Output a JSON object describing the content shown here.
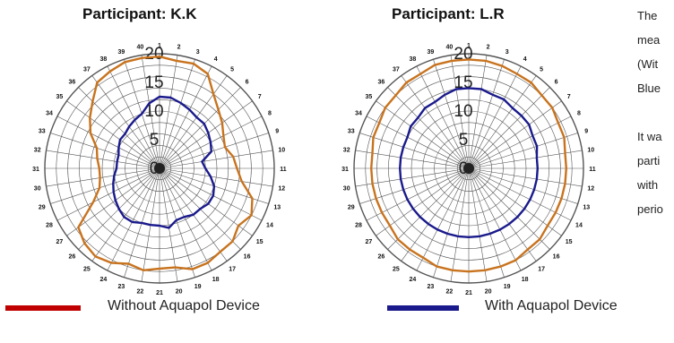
{
  "description_text": {
    "lines": [
      "The",
      "mea",
      "(Wit",
      "Blue",
      "",
      "It wa",
      "parti",
      "with",
      "perio"
    ]
  },
  "legend": {
    "red_label": "Without Aquapol Device",
    "blue_label": "With Aquapol Device",
    "red_color": "#c00000",
    "blue_color": "#1a1a8c"
  },
  "chart_data": [
    {
      "type": "radar",
      "title": "Participant: K.K",
      "categories": [
        "1",
        "2",
        "3",
        "4",
        "5",
        "6",
        "7",
        "8",
        "9",
        "10",
        "11",
        "12",
        "13",
        "14",
        "15",
        "16",
        "17",
        "18",
        "19",
        "20",
        "21",
        "22",
        "23",
        "24",
        "25",
        "26",
        "27",
        "28",
        "29",
        "30",
        "31",
        "32",
        "33",
        "34",
        "35",
        "36",
        "37",
        "38",
        "39",
        "40"
      ],
      "rlim": [
        0,
        20
      ],
      "radial_ticks": [
        "0",
        "5",
        "10",
        "15",
        "20"
      ],
      "plot_color": "#c8731e",
      "series": [
        {
          "name": "Without Aquapol Device",
          "values": [
            19.5,
            19,
            19.2,
            18.5,
            16,
            14.5,
            13.5,
            12.5,
            12,
            13,
            13.5,
            14.5,
            17,
            18,
            17,
            18,
            18,
            18.5,
            18.5,
            17.5,
            17.5,
            18,
            17.5,
            18.5,
            19,
            18.5,
            17.5,
            13,
            11,
            10.5,
            10.5,
            11,
            11.5,
            13.5,
            15,
            16.5,
            18.5,
            19,
            19.5,
            19.5
          ]
        },
        {
          "name": "With Aquapol Device",
          "values": [
            12.5,
            12.5,
            12,
            11.5,
            11,
            11,
            10.5,
            10,
            9.5,
            7.5,
            8,
            9,
            10,
            10.5,
            10.5,
            10,
            10,
            9.5,
            9.5,
            10.5,
            10,
            10,
            10,
            10.5,
            10.5,
            10,
            9.5,
            9,
            8.5,
            8,
            7.5,
            7.5,
            7.5,
            8,
            8.5,
            8.5,
            9,
            9.5,
            10,
            11.5
          ]
        }
      ]
    },
    {
      "type": "radar",
      "title": "Participant: L.R",
      "categories": [
        "1",
        "2",
        "3",
        "4",
        "5",
        "6",
        "7",
        "8",
        "9",
        "10",
        "11",
        "12",
        "13",
        "14",
        "15",
        "16",
        "17",
        "18",
        "19",
        "20",
        "21",
        "22",
        "23",
        "24",
        "25",
        "26",
        "27",
        "28",
        "29",
        "30",
        "31",
        "32",
        "33",
        "34",
        "35",
        "36",
        "37",
        "38",
        "39",
        "40"
      ],
      "rlim": [
        0,
        20
      ],
      "radial_ticks": [
        "0",
        "5",
        "10",
        "15",
        "20"
      ],
      "plot_color": "#c8731e",
      "series": [
        {
          "name": "Without Aquapol Device",
          "values": [
            19,
            19,
            18.8,
            18.5,
            18.5,
            18,
            18,
            17.5,
            17.5,
            17,
            17,
            17,
            17,
            17,
            17,
            17.5,
            17.5,
            18,
            18,
            18,
            18,
            18,
            18,
            17.5,
            17.5,
            17.5,
            17,
            17,
            17,
            17,
            17,
            17,
            17.5,
            17.5,
            18,
            18,
            18.5,
            18.5,
            19,
            19
          ]
        },
        {
          "name": "With Aquapol Device",
          "values": [
            14,
            14,
            13.5,
            13.5,
            13,
            13,
            13,
            12.5,
            12.5,
            12,
            12,
            12,
            12,
            12,
            12,
            12,
            12,
            12,
            12,
            12,
            12,
            12,
            12,
            12,
            12,
            12,
            12,
            12,
            12,
            12,
            12,
            12,
            12,
            12,
            12.5,
            12.5,
            13,
            13,
            13.5,
            14
          ]
        }
      ]
    }
  ]
}
